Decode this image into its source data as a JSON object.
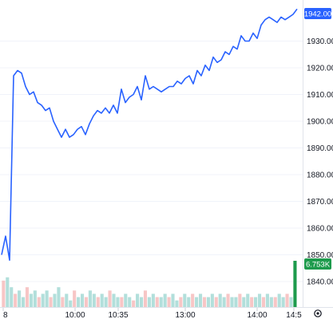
{
  "chart_data": {
    "type": "line",
    "price_axis": {
      "ticks": [
        "1930.00",
        "1920.00",
        "1910.00",
        "1900.00",
        "1890.00",
        "1880.00",
        "1870.00",
        "1860.00",
        "1850.00",
        "1840.00"
      ],
      "range": [
        1835,
        1945
      ]
    },
    "time_axis": {
      "ticks": [
        "8",
        "10:00",
        "10:35",
        "13:00",
        "14:00",
        "14:5"
      ]
    },
    "series": [
      {
        "color": "#2962ff",
        "values": [
          1850,
          1857,
          1848,
          1917,
          1919,
          1918,
          1913,
          1910,
          1911,
          1907,
          1906,
          1904,
          1905,
          1900,
          1897,
          1894,
          1897,
          1894,
          1895,
          1897,
          1898,
          1895,
          1899,
          1902,
          1904,
          1903,
          1905,
          1903,
          1906,
          1903,
          1912,
          1907,
          1909,
          1910,
          1913,
          1908,
          1917,
          1912,
          1913,
          1912,
          1911,
          1912,
          1913,
          1913,
          1915,
          1914,
          1916,
          1917,
          1914,
          1919,
          1917,
          1921,
          1919,
          1924,
          1922,
          1923,
          1926,
          1925,
          1928,
          1927,
          1932,
          1930,
          1930,
          1933,
          1931,
          1936,
          1938,
          1939,
          1938,
          1937,
          1939,
          1938,
          1939,
          1940,
          1942
        ]
      }
    ],
    "last_price": "1942.00",
    "last_volume": "6.753K",
    "volume": {
      "up_color": "#b2dfdb",
      "down_color": "#f7c6c6",
      "last_color": "#1e9b4d",
      "values": [
        8,
        9,
        6,
        4,
        5,
        3,
        6,
        4,
        5,
        3,
        4,
        5,
        3,
        4,
        6,
        3,
        4,
        2,
        5,
        3,
        4,
        3,
        5,
        4,
        3,
        4,
        3,
        5,
        4,
        3,
        3,
        4,
        3,
        2,
        4,
        3,
        5,
        3,
        4,
        3,
        3,
        4,
        3,
        4,
        2,
        3,
        4,
        3,
        4,
        3,
        4,
        3,
        3,
        4,
        3,
        4,
        3,
        4,
        3,
        3,
        4,
        3,
        4,
        3,
        3,
        4,
        3,
        4,
        3,
        3,
        4,
        3,
        4,
        3,
        14
      ]
    }
  },
  "icons": {
    "settings": "gear-icon"
  }
}
